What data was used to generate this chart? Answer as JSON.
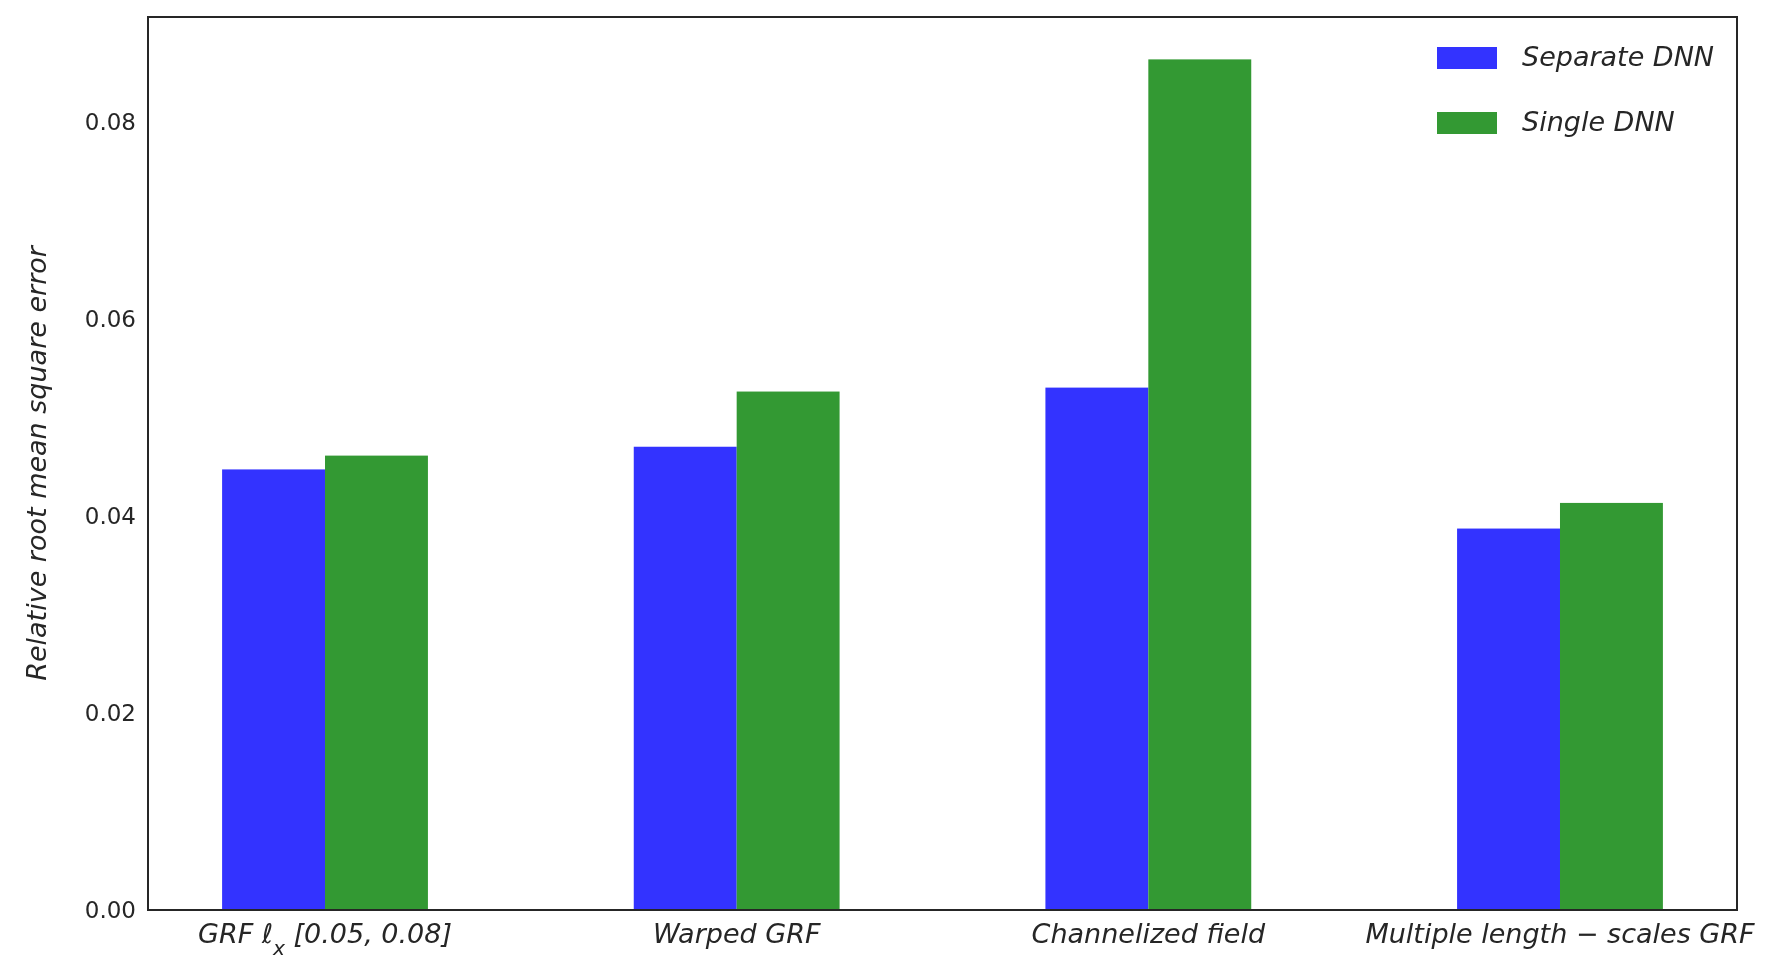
{
  "chart_data": {
    "type": "bar",
    "ylabel": "Relative root mean square error",
    "categories": [
      "GRF ℓ$_{x}$ [0.05, 0.08]",
      "Warped GRF",
      "Channelized field",
      "Multiple length − scales GRF"
    ],
    "series": [
      {
        "name": "Separate DNN",
        "color": "#3333ff",
        "values": [
          0.0447,
          0.047,
          0.053,
          0.0387
        ]
      },
      {
        "name": "Single DNN",
        "color": "#339933",
        "values": [
          0.0461,
          0.0526,
          0.0863,
          0.0413
        ]
      }
    ],
    "ylim": [
      0,
      0.0906
    ],
    "yticks": [
      {
        "value": 0,
        "label": "0.00"
      },
      {
        "value": 0.02,
        "label": "0.02"
      },
      {
        "value": 0.04,
        "label": "0.04"
      },
      {
        "value": 0.06,
        "label": "0.06"
      },
      {
        "value": 0.08,
        "label": "0.08"
      }
    ],
    "legend": "top right"
  }
}
